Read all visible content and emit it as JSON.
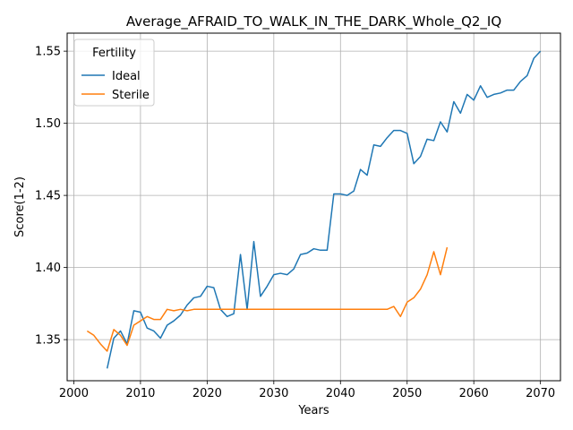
{
  "chart_data": {
    "type": "line",
    "title": "Average_AFRAID_TO_WALK_IN_THE_DARK_Whole_Q2_IQ",
    "xlabel": "Years",
    "ylabel": "Score(1-2)",
    "xlim": [
      1999,
      2073
    ],
    "ylim": [
      1.3215,
      1.5625
    ],
    "xticks": [
      2000,
      2010,
      2020,
      2030,
      2040,
      2050,
      2060,
      2070
    ],
    "yticks": [
      1.35,
      1.4,
      1.45,
      1.5,
      1.55
    ],
    "ytick_labels": [
      "1.35",
      "1.40",
      "1.45",
      "1.50",
      "1.55"
    ],
    "grid": true,
    "legend": {
      "title": "Fertility",
      "placement": "top-left"
    },
    "series": [
      {
        "name": "Ideal",
        "color": "#1f77b4",
        "x": [
          2005,
          2006,
          2007,
          2008,
          2009,
          2010,
          2011,
          2012,
          2013,
          2014,
          2015,
          2016,
          2017,
          2018,
          2019,
          2020,
          2021,
          2022,
          2023,
          2024,
          2025,
          2026,
          2027,
          2028,
          2029,
          2030,
          2031,
          2032,
          2033,
          2034,
          2035,
          2036,
          2037,
          2038,
          2039,
          2040,
          2041,
          2042,
          2043,
          2044,
          2045,
          2046,
          2047,
          2048,
          2049,
          2050,
          2051,
          2052,
          2053,
          2054,
          2055,
          2056,
          2057,
          2058,
          2059,
          2060,
          2061,
          2062,
          2063,
          2064,
          2065,
          2066,
          2067,
          2068,
          2069,
          2070
        ],
        "y": [
          1.33,
          1.351,
          1.356,
          1.347,
          1.37,
          1.369,
          1.358,
          1.356,
          1.351,
          1.36,
          1.363,
          1.367,
          1.374,
          1.379,
          1.38,
          1.387,
          1.386,
          1.371,
          1.366,
          1.368,
          1.409,
          1.371,
          1.418,
          1.38,
          1.387,
          1.395,
          1.396,
          1.395,
          1.399,
          1.409,
          1.41,
          1.413,
          1.412,
          1.412,
          1.451,
          1.451,
          1.45,
          1.453,
          1.468,
          1.464,
          1.485,
          1.484,
          1.49,
          1.495,
          1.495,
          1.493,
          1.472,
          1.477,
          1.489,
          1.488,
          1.501,
          1.494,
          1.515,
          1.507,
          1.52,
          1.516,
          1.526,
          1.518,
          1.52,
          1.521,
          1.523,
          1.523,
          1.529,
          1.533,
          1.545,
          1.55
        ]
      },
      {
        "name": "Sterile",
        "color": "#ff7f0e",
        "x": [
          2002,
          2003,
          2004,
          2005,
          2006,
          2007,
          2008,
          2009,
          2010,
          2011,
          2012,
          2013,
          2014,
          2015,
          2016,
          2017,
          2018,
          2019,
          2020,
          2021,
          2022,
          2023,
          2024,
          2025,
          2026,
          2027,
          2028,
          2029,
          2030,
          2031,
          2032,
          2033,
          2034,
          2035,
          2036,
          2037,
          2038,
          2039,
          2040,
          2041,
          2042,
          2043,
          2044,
          2045,
          2046,
          2047,
          2048,
          2049,
          2050,
          2051,
          2052,
          2053,
          2054,
          2055,
          2056
        ],
        "y": [
          1.356,
          1.353,
          1.347,
          1.342,
          1.357,
          1.353,
          1.346,
          1.36,
          1.363,
          1.366,
          1.364,
          1.364,
          1.371,
          1.37,
          1.371,
          1.37,
          1.371,
          1.371,
          1.371,
          1.371,
          1.371,
          1.371,
          1.371,
          1.371,
          1.371,
          1.371,
          1.371,
          1.371,
          1.371,
          1.371,
          1.371,
          1.371,
          1.371,
          1.371,
          1.371,
          1.371,
          1.371,
          1.371,
          1.371,
          1.371,
          1.371,
          1.371,
          1.371,
          1.371,
          1.371,
          1.371,
          1.373,
          1.366,
          1.376,
          1.379,
          1.385,
          1.395,
          1.411,
          1.395,
          1.414
        ]
      }
    ]
  }
}
